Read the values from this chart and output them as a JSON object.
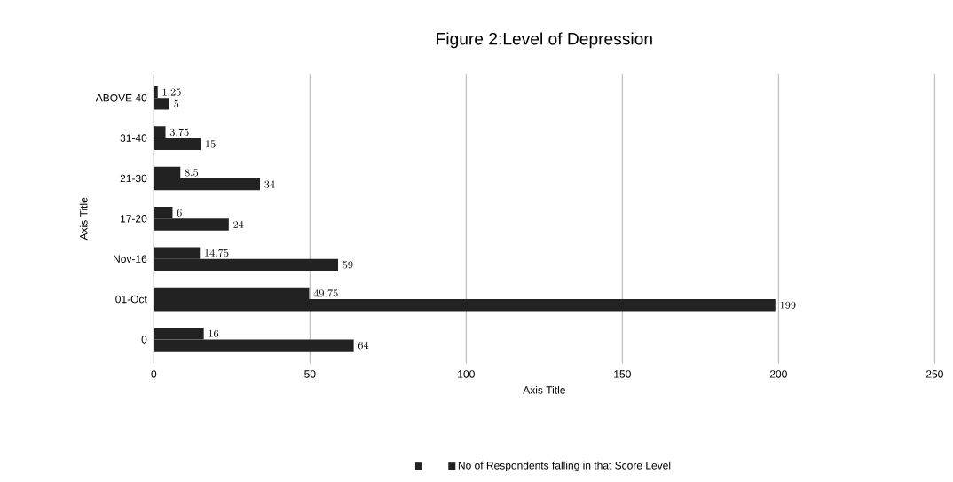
{
  "chart_data": {
    "type": "bar",
    "orientation": "horizontal",
    "title": "Figure 2:Level of Depression",
    "xlabel": "Axis Title",
    "ylabel": "Axis Title",
    "categories": [
      "ABOVE 40",
      "31-40",
      "21-30",
      "17-20",
      "Nov-16",
      "01-Oct",
      "0"
    ],
    "series": [
      {
        "color": "#222222",
        "values": [
          1.25,
          3.75,
          8.5,
          6,
          14.75,
          49.75,
          16
        ]
      },
      {
        "name": "No of Respondents falling in that Score Level",
        "color": "#222222",
        "values": [
          5,
          15,
          34,
          24,
          59,
          199,
          64
        ]
      }
    ],
    "xlim": [
      0,
      250
    ],
    "xticks": [
      0,
      50,
      100,
      150,
      200,
      250
    ],
    "grid": "x",
    "legend": "bottom",
    "data_labels": true
  }
}
